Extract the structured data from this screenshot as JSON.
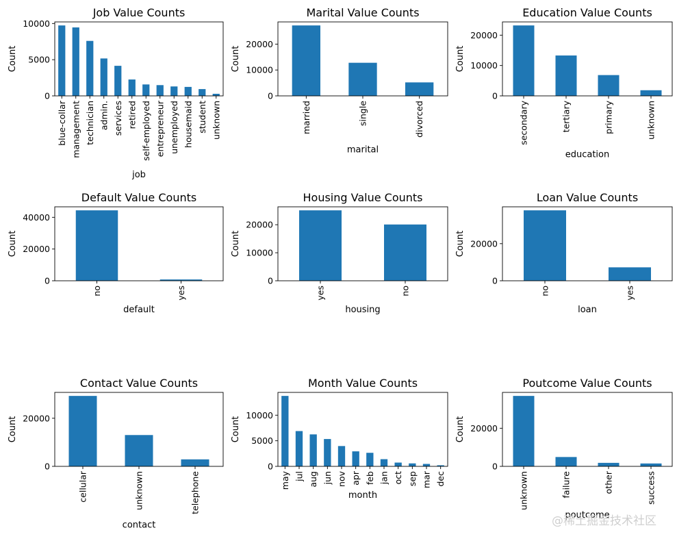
{
  "bar_color": "#1f77b4",
  "watermark": "@稀土掘金技术社区",
  "chart_data": [
    {
      "type": "bar",
      "title": "Job Value Counts",
      "xlabel": "job",
      "ylabel": "Count",
      "categories": [
        "blue-collar",
        "management",
        "technician",
        "admin.",
        "services",
        "retired",
        "self-employed",
        "entrepreneur",
        "unemployed",
        "housemaid",
        "student",
        "unknown"
      ],
      "values": [
        9732,
        9458,
        7597,
        5171,
        4154,
        2264,
        1579,
        1487,
        1303,
        1240,
        938,
        288
      ],
      "ylim": [
        0,
        10220
      ],
      "yticks": [
        0,
        5000,
        10000
      ]
    },
    {
      "type": "bar",
      "title": "Marital Value Counts",
      "xlabel": "marital",
      "ylabel": "Count",
      "categories": [
        "married",
        "single",
        "divorced"
      ],
      "values": [
        27214,
        12790,
        5207
      ],
      "ylim": [
        0,
        28575
      ],
      "yticks": [
        0,
        10000,
        20000
      ]
    },
    {
      "type": "bar",
      "title": "Education Value Counts",
      "xlabel": "education",
      "ylabel": "Count",
      "categories": [
        "secondary",
        "tertiary",
        "primary",
        "unknown"
      ],
      "values": [
        23202,
        13301,
        6851,
        1857
      ],
      "ylim": [
        0,
        24362
      ],
      "yticks": [
        0,
        10000,
        20000
      ]
    },
    {
      "type": "bar",
      "title": "Default Value Counts",
      "xlabel": "default",
      "ylabel": "Count",
      "categories": [
        "no",
        "yes"
      ],
      "values": [
        44396,
        815
      ],
      "ylim": [
        0,
        46616
      ],
      "yticks": [
        0,
        20000,
        40000
      ]
    },
    {
      "type": "bar",
      "title": "Housing Value Counts",
      "xlabel": "housing",
      "ylabel": "Count",
      "categories": [
        "yes",
        "no"
      ],
      "values": [
        25130,
        20081
      ],
      "ylim": [
        0,
        26387
      ],
      "yticks": [
        0,
        10000,
        20000
      ]
    },
    {
      "type": "bar",
      "title": "Loan Value Counts",
      "xlabel": "loan",
      "ylabel": "Count",
      "categories": [
        "no",
        "yes"
      ],
      "values": [
        37967,
        7244
      ],
      "ylim": [
        0,
        39865
      ],
      "yticks": [
        0,
        20000
      ]
    },
    {
      "type": "bar",
      "title": "Contact Value Counts",
      "xlabel": "contact",
      "ylabel": "Count",
      "categories": [
        "cellular",
        "unknown",
        "telephone"
      ],
      "values": [
        29285,
        13020,
        2906
      ],
      "ylim": [
        0,
        30749
      ],
      "yticks": [
        0,
        20000
      ]
    },
    {
      "type": "bar",
      "title": "Month Value Counts",
      "xlabel": "month",
      "ylabel": "Count",
      "categories": [
        "may",
        "jul",
        "aug",
        "jun",
        "nov",
        "apr",
        "feb",
        "jan",
        "oct",
        "sep",
        "mar",
        "dec"
      ],
      "values": [
        13766,
        6895,
        6247,
        5341,
        3970,
        2932,
        2649,
        1403,
        738,
        579,
        477,
        214
      ],
      "ylim": [
        0,
        14454
      ],
      "yticks": [
        0,
        5000,
        10000
      ]
    },
    {
      "type": "bar",
      "title": "Poutcome Value Counts",
      "xlabel": "poutcome",
      "ylabel": "Count",
      "categories": [
        "unknown",
        "failure",
        "other",
        "success"
      ],
      "values": [
        36959,
        4901,
        1840,
        1511
      ],
      "ylim": [
        0,
        38807
      ],
      "yticks": [
        0,
        20000
      ]
    }
  ]
}
